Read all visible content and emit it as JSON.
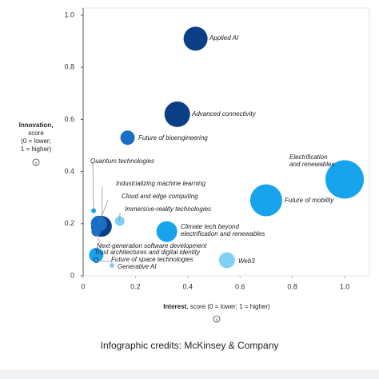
{
  "chart_data": {
    "type": "scatter",
    "ylabel": {
      "bold": "Innovation,",
      "lines": [
        "score",
        "(0 = lower;",
        "1 = higher)"
      ]
    },
    "xlabel": {
      "bold": "Interest",
      "rest": ", score (0 = lower; 1 = higher)"
    },
    "xlim": [
      0,
      1
    ],
    "ylim": [
      0,
      1
    ],
    "xticks": [
      0,
      0.2,
      0.4,
      0.6,
      0.8,
      {
        "value": 1,
        "label": "1.0"
      }
    ],
    "yticks": [
      0,
      0.2,
      0.4,
      0.6,
      0.8,
      {
        "value": 1,
        "label": "1.0"
      }
    ],
    "points": [
      {
        "label": [
          "Applied AI"
        ],
        "x": 0.43,
        "y": 0.91,
        "size": 15,
        "color": "#0b3f85"
      },
      {
        "label": [
          "Advanced connectivity"
        ],
        "x": 0.36,
        "y": 0.62,
        "size": 16,
        "color": "#0b3f85"
      },
      {
        "label": [
          "Future of bioengineering"
        ],
        "x": 0.17,
        "y": 0.53,
        "size": 9,
        "color": "#1a6fc4"
      },
      {
        "label": [
          "Electrification",
          "and renewables"
        ],
        "x": 1.0,
        "y": 0.37,
        "size": 24,
        "color": "#18a4ec"
      },
      {
        "label": [
          "Future of mobility"
        ],
        "x": 0.7,
        "y": 0.29,
        "size": 20,
        "color": "#18a4ec"
      },
      {
        "label": [
          "Quantum technologies"
        ],
        "x": 0.04,
        "y": 0.25,
        "size": 3,
        "color": "#18a4ec"
      },
      {
        "label": [
          "Industrializing machine learning"
        ],
        "x": 0.07,
        "y": 0.19,
        "size": 13,
        "color": "#0b3f85"
      },
      {
        "label": [
          "Cloud and edge computing"
        ],
        "x": 0.06,
        "y": 0.2,
        "size": 10,
        "color": "#1a6fc4"
      },
      {
        "label": [
          "Immersive-reality technologies"
        ],
        "x": 0.14,
        "y": 0.21,
        "size": 6,
        "color": "#7fd0f5"
      },
      {
        "label": [
          "Climate tech beyond",
          "electrification and renewables"
        ],
        "x": 0.32,
        "y": 0.17,
        "size": 13,
        "color": "#18a4ec"
      },
      {
        "label": [
          "Next-generation software development"
        ],
        "x": 0.05,
        "y": 0.17,
        "size": 6,
        "color": "#1a6fc4"
      },
      {
        "label": [
          "Trust architectures and digital identity"
        ],
        "x": 0.05,
        "y": 0.08,
        "size": 9,
        "color": "#18a4ec"
      },
      {
        "label": [
          "Future of space technologies"
        ],
        "x": 0.05,
        "y": 0.06,
        "size": 3,
        "color": "#0b3f85"
      },
      {
        "label": [
          "Generative AI"
        ],
        "x": 0.11,
        "y": 0.04,
        "size": 3,
        "color": "#7fd0f5"
      },
      {
        "label": [
          "Web3"
        ],
        "x": 0.55,
        "y": 0.06,
        "size": 10,
        "color": "#7fd0f5"
      }
    ],
    "credits": "Infographic credits: McKinsey & Company"
  }
}
